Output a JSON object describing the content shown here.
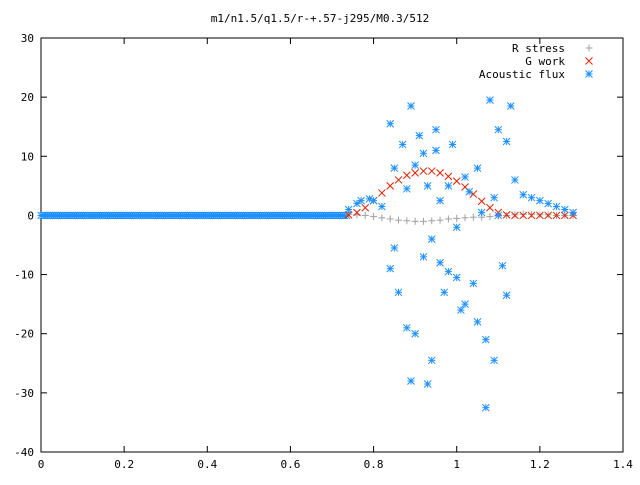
{
  "chart_data": {
    "type": "scatter",
    "title": "m1/n1.5/q1.5/r-+.57-j295/M0.3/512",
    "xlabel": "",
    "ylabel": "",
    "xlim": [
      0,
      1.4
    ],
    "ylim": [
      -40,
      30
    ],
    "xticks": [
      0,
      0.2,
      0.4,
      0.6,
      0.8,
      1,
      1.2,
      1.4
    ],
    "xtick_labels": [
      "0",
      "0.2",
      "0.4",
      "0.6",
      "0.8",
      "1",
      "1.2",
      "1.4"
    ],
    "yticks": [
      -40,
      -30,
      -20,
      -10,
      0,
      10,
      20,
      30
    ],
    "ytick_labels": [
      "-40",
      "-30",
      "-20",
      "-10",
      "0",
      "10",
      "20",
      "30"
    ],
    "grid": false,
    "legend_position": "top-right",
    "series": [
      {
        "name": "R stress",
        "marker": "plus",
        "color": "#a0a0a0",
        "x": [
          0.74,
          0.76,
          0.78,
          0.8,
          0.82,
          0.84,
          0.86,
          0.88,
          0.9,
          0.92,
          0.94,
          0.96,
          0.98,
          1.0,
          1.02,
          1.04,
          1.06,
          1.08,
          1.1,
          1.12,
          1.14,
          1.16,
          1.18,
          1.2,
          1.22,
          1.24,
          1.26,
          1.28
        ],
        "y": [
          0.2,
          0.1,
          0.0,
          -0.2,
          -0.4,
          -0.6,
          -0.8,
          -0.9,
          -1.0,
          -1.0,
          -0.9,
          -0.8,
          -0.6,
          -0.5,
          -0.4,
          -0.3,
          -0.3,
          -0.2,
          -0.1,
          0.0,
          0.1,
          0.2,
          0.2,
          0.1,
          0.1,
          0.0,
          0.0,
          0.0
        ]
      },
      {
        "name": "G work",
        "marker": "cross",
        "color": "#e02000",
        "x": [
          0.74,
          0.76,
          0.78,
          0.8,
          0.82,
          0.84,
          0.86,
          0.88,
          0.9,
          0.92,
          0.94,
          0.96,
          0.98,
          1.0,
          1.02,
          1.04,
          1.06,
          1.08,
          1.1,
          1.12,
          1.14,
          1.16,
          1.18,
          1.2,
          1.22,
          1.24,
          1.26,
          1.28
        ],
        "y": [
          0.1,
          0.5,
          1.3,
          2.5,
          3.8,
          5.0,
          6.0,
          6.8,
          7.2,
          7.5,
          7.5,
          7.2,
          6.6,
          5.8,
          4.8,
          3.6,
          2.4,
          1.3,
          0.5,
          0.1,
          0.0,
          0.0,
          0.0,
          0.0,
          0.0,
          0.0,
          0.0,
          0.0
        ]
      },
      {
        "name": "Acoustic flux",
        "marker": "star",
        "color": "#1e90ff",
        "x": [
          0.74,
          0.76,
          0.77,
          0.79,
          0.8,
          0.82,
          0.84,
          0.84,
          0.85,
          0.85,
          0.86,
          0.87,
          0.88,
          0.88,
          0.89,
          0.89,
          0.9,
          0.9,
          0.91,
          0.92,
          0.92,
          0.93,
          0.93,
          0.94,
          0.94,
          0.95,
          0.95,
          0.96,
          0.96,
          0.97,
          0.98,
          0.98,
          0.99,
          1.0,
          1.0,
          1.01,
          1.02,
          1.02,
          1.03,
          1.04,
          1.05,
          1.05,
          1.06,
          1.07,
          1.07,
          1.08,
          1.09,
          1.09,
          1.1,
          1.1,
          1.11,
          1.12,
          1.12,
          1.13,
          1.14,
          1.16,
          1.18,
          1.2,
          1.22,
          1.24,
          1.26,
          1.28
        ],
        "y": [
          1.0,
          2.0,
          2.5,
          2.8,
          2.5,
          1.5,
          15.5,
          -9.0,
          8.0,
          -5.5,
          -13.0,
          12.0,
          4.5,
          -19.0,
          18.5,
          -28.0,
          8.5,
          -20.0,
          13.5,
          10.5,
          -7.0,
          -28.5,
          5.0,
          -4.0,
          -24.5,
          14.5,
          11.0,
          -8.0,
          2.5,
          -13.0,
          5.0,
          -9.5,
          12.0,
          -2.0,
          -10.5,
          -16.0,
          6.5,
          -15.0,
          4.0,
          -11.5,
          -18.0,
          8.0,
          0.5,
          -21.0,
          -32.5,
          19.5,
          3.0,
          -24.5,
          14.5,
          0.0,
          -8.5,
          12.5,
          -13.5,
          18.5,
          6.0,
          3.5,
          3.0,
          2.5,
          2.0,
          1.5,
          1.0,
          0.5
        ]
      }
    ]
  }
}
